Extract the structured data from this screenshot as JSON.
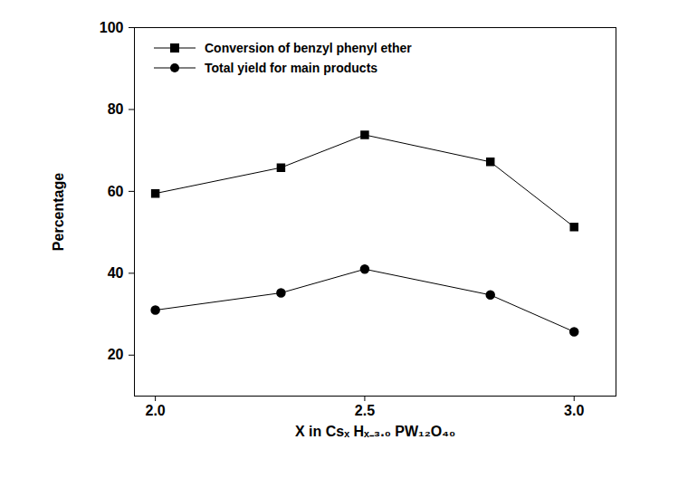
{
  "chart_data": {
    "type": "line",
    "x_label": "X in Csₓ Hₓ₋₃.₀ PW₁₂O₄₀",
    "y_label": "Percentage",
    "x": [
      2.0,
      2.3,
      2.5,
      2.8,
      3.0
    ],
    "series": [
      {
        "name": "Conversion of benzyl phenyl ether",
        "color": "#000000",
        "marker": "square",
        "values": [
          59.5,
          65.8,
          73.8,
          67.2,
          51.3
        ]
      },
      {
        "name": "Total yield for main products",
        "color": "#000000",
        "marker": "circle",
        "values": [
          31.0,
          35.2,
          41.0,
          34.7,
          25.7
        ]
      }
    ],
    "xlim": [
      1.95,
      3.1
    ],
    "xticks": [
      {
        "value": 2.0,
        "label": "2.0"
      },
      {
        "value": 2.5,
        "label": "2.5"
      },
      {
        "value": 3.0,
        "label": "3.0"
      }
    ],
    "ylim": [
      10,
      100
    ],
    "yticks": [
      20,
      40,
      60,
      80,
      100
    ],
    "grid": false,
    "legend": "upper left"
  }
}
